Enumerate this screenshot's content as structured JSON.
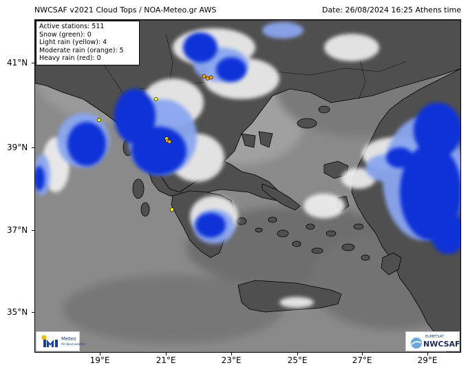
{
  "header": {
    "title": "NWCSAF v2021 Cloud Tops / NOA-Meteo.gr AWS",
    "date": "Date: 26/08/2024 16:25 Athens time"
  },
  "legend": {
    "lines": [
      "Active stations: 511",
      "Snow (green): 0",
      "Light rain (yellow): 4",
      "Moderate rain (orange): 5",
      "Heavy rain (red): 0"
    ]
  },
  "axes": {
    "x_ticks": [
      {
        "label": "19°E",
        "lon": 19
      },
      {
        "label": "21°E",
        "lon": 21
      },
      {
        "label": "23°E",
        "lon": 23
      },
      {
        "label": "25°E",
        "lon": 25
      },
      {
        "label": "27°E",
        "lon": 27
      },
      {
        "label": "29°E",
        "lon": 29
      }
    ],
    "y_ticks": [
      {
        "label": "41°N",
        "lat": 41
      },
      {
        "label": "39°N",
        "lat": 39
      },
      {
        "label": "37°N",
        "lat": 37
      },
      {
        "label": "35°N",
        "lat": 35
      }
    ],
    "lon_range": [
      18.0,
      30.0
    ],
    "lat_range": [
      34.0,
      42.0
    ]
  },
  "stations": [
    {
      "lon": 19.8,
      "lat": 39.6,
      "category": "light rain",
      "color": "#ffff00"
    },
    {
      "lon": 21.4,
      "lat": 40.1,
      "category": "light rain",
      "color": "#ffff00"
    },
    {
      "lon": 21.85,
      "lat": 37.45,
      "category": "light rain",
      "color": "#ffff00"
    },
    {
      "lon": 21.7,
      "lat": 39.15,
      "category": "light rain",
      "color": "#ffff00"
    },
    {
      "lon": 22.75,
      "lat": 40.65,
      "category": "moderate rain",
      "color": "#ffa500"
    },
    {
      "lon": 22.95,
      "lat": 40.62,
      "category": "moderate rain",
      "color": "#ffa500"
    },
    {
      "lon": 22.85,
      "lat": 40.6,
      "category": "moderate rain",
      "color": "#ffa500"
    },
    {
      "lon": 21.72,
      "lat": 39.1,
      "category": "moderate rain",
      "color": "#ffa500"
    },
    {
      "lon": 21.78,
      "lat": 39.08,
      "category": "moderate rain",
      "color": "#ffa500"
    }
  ],
  "colors": {
    "cloud_blue": "#1030d8",
    "cloud_light_blue": "#8aa6f0",
    "cloud_white": "#f2f2f2",
    "sea_gray": "#8a8a8a",
    "land_dark": "#4f4f4f"
  },
  "logos": {
    "left_text": "Meteo",
    "left_subtext": "All about weather",
    "right_small": "EUMETSAT",
    "right_big": "NWCSAF"
  }
}
